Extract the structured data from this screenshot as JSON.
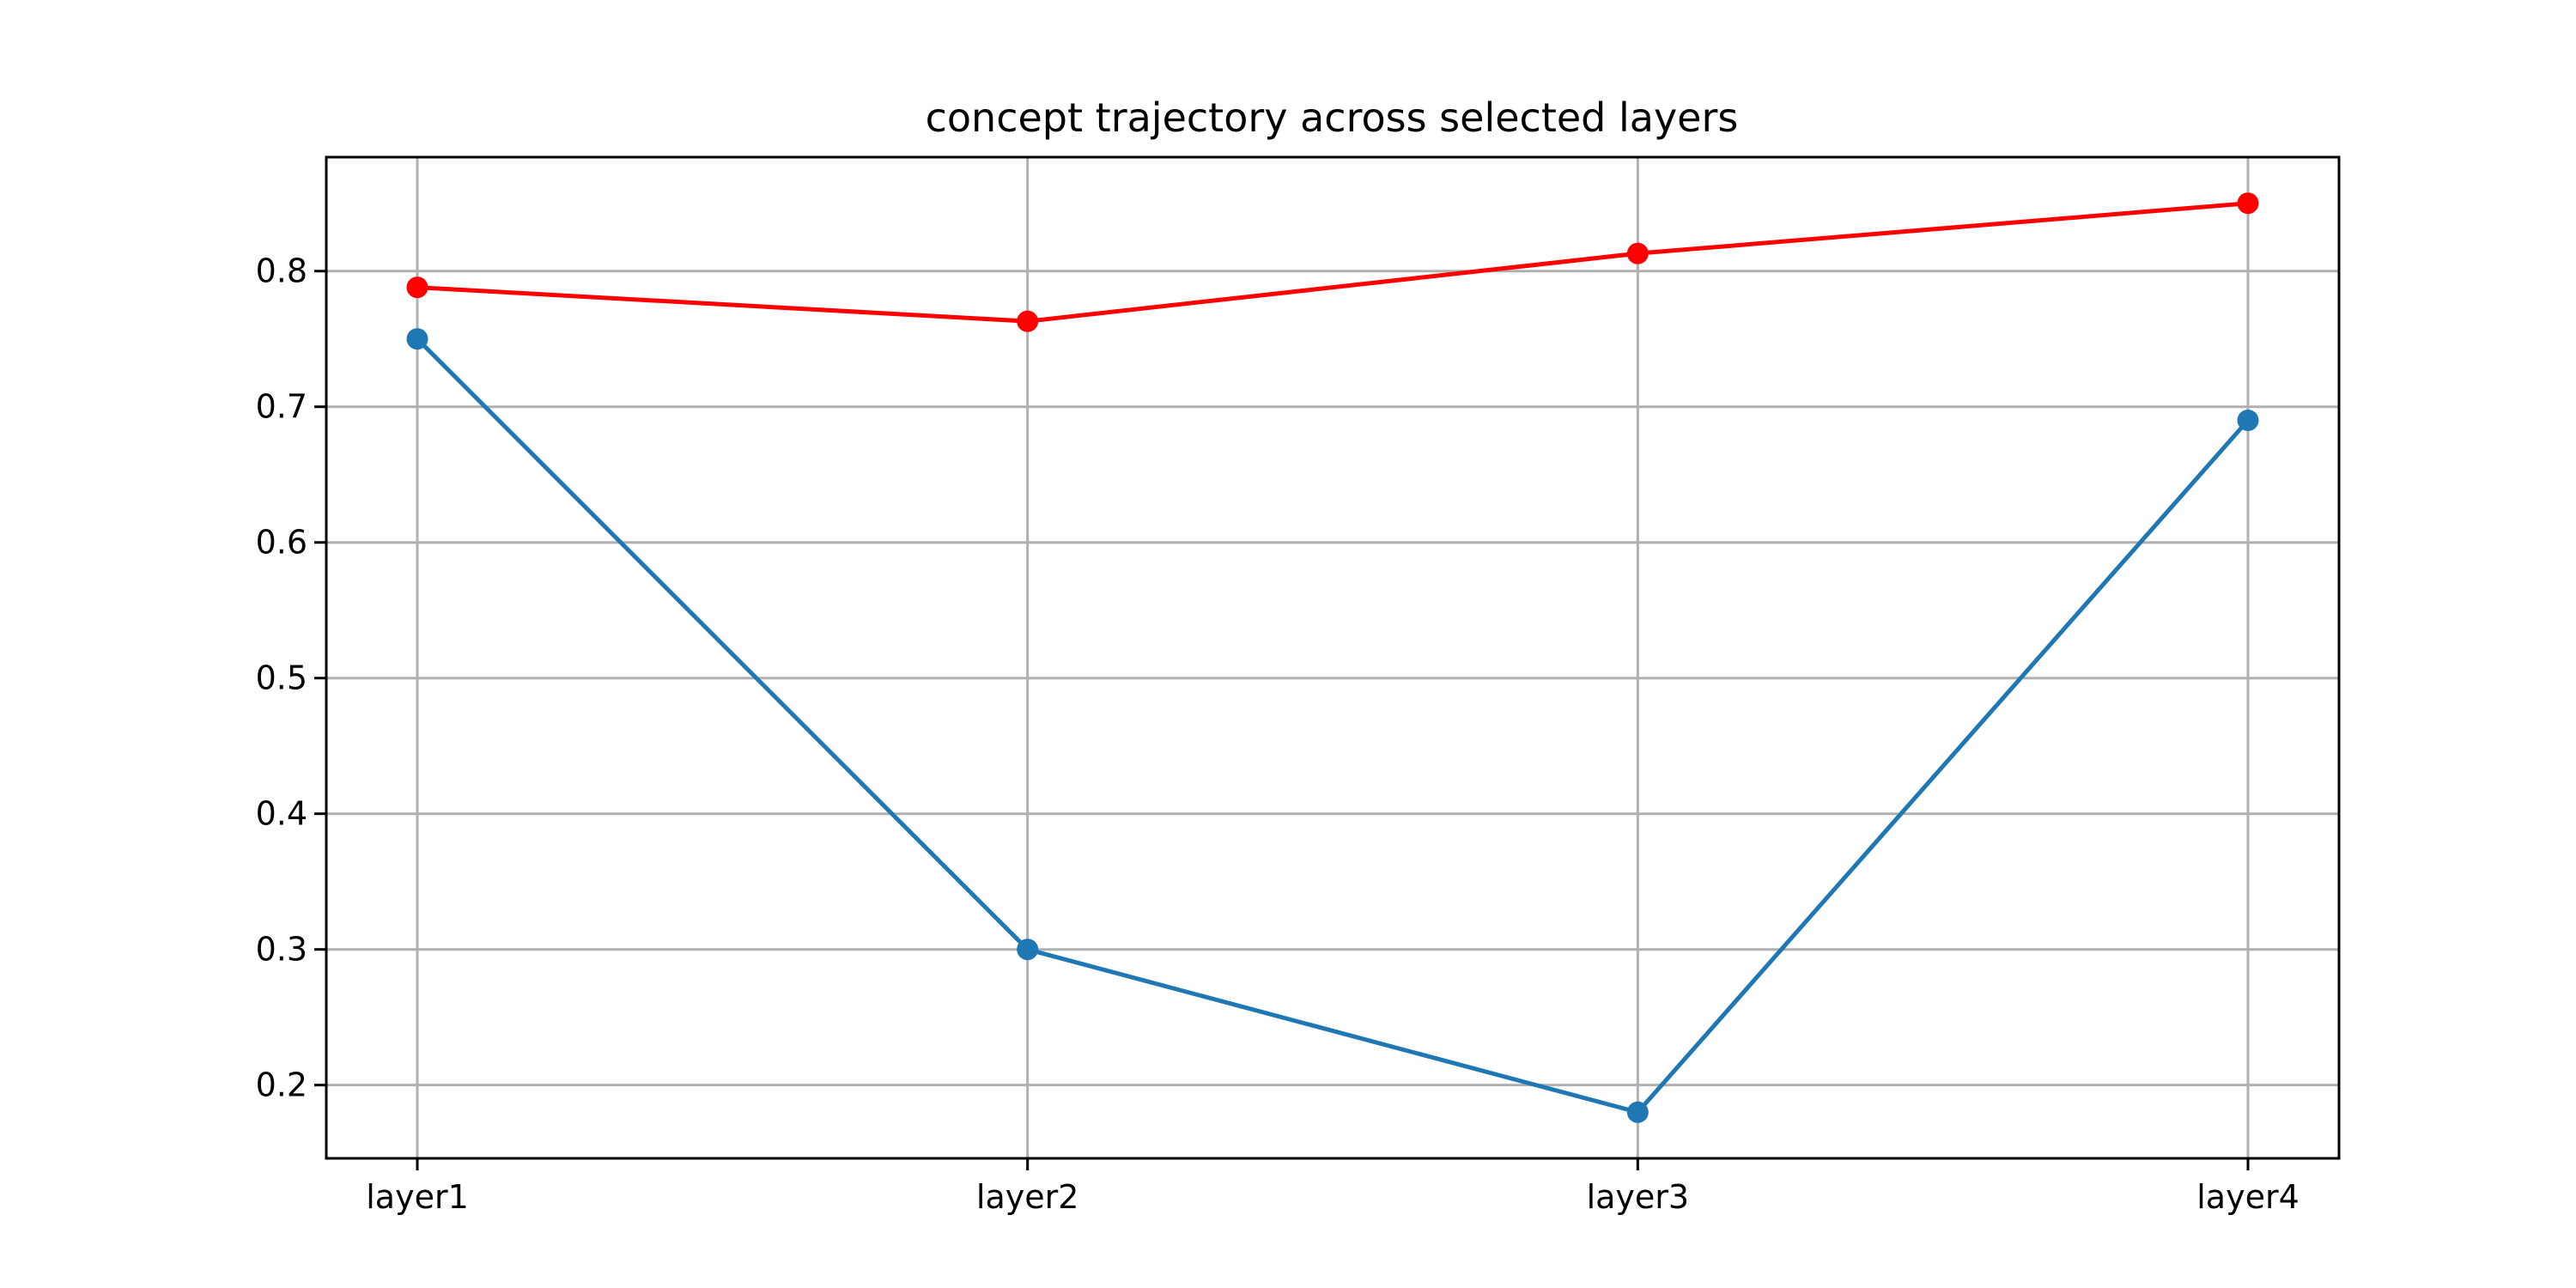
{
  "chart_data": {
    "type": "line",
    "title": "concept trajectory across selected layers",
    "xlabel": "",
    "ylabel": "",
    "categories": [
      "layer1",
      "layer2",
      "layer3",
      "layer4"
    ],
    "y_ticks": [
      0.2,
      0.3,
      0.4,
      0.5,
      0.6,
      0.7,
      0.8
    ],
    "ylim": [
      0.146,
      0.884
    ],
    "grid": true,
    "legend": "none",
    "series": [
      {
        "values": [
          0.788,
          0.763,
          0.813,
          0.85
        ],
        "color": "#ff0000",
        "marker": "circle"
      },
      {
        "values": [
          0.75,
          0.3,
          0.18,
          0.69
        ],
        "color": "#1f77b4",
        "marker": "circle"
      }
    ]
  }
}
